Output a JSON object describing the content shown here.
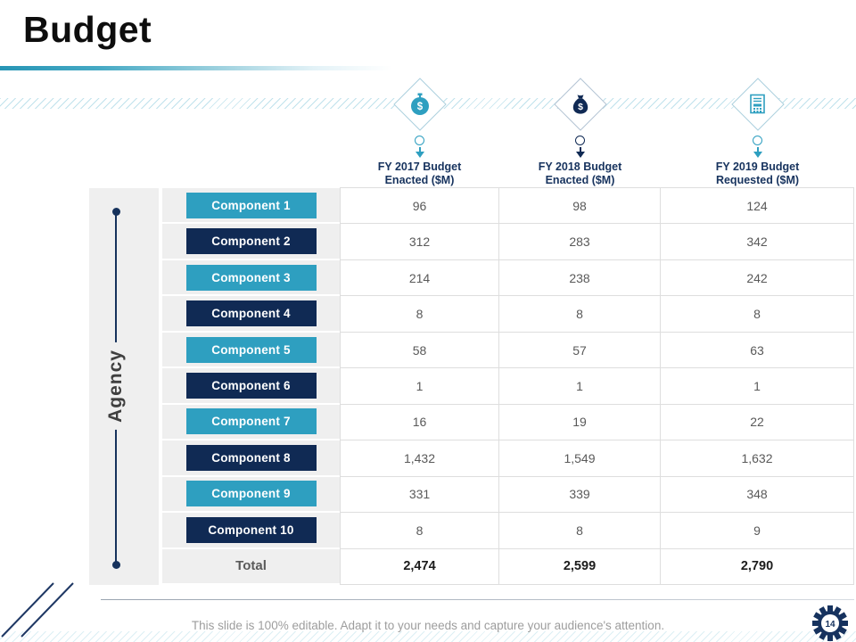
{
  "slide": {
    "title": "Budget",
    "footer_note": "This slide is 100% editable. Adapt it to your needs and capture your audience's attention.",
    "page_number": "14"
  },
  "colors": {
    "teal": "#2E9FC0",
    "navy": "#102A54"
  },
  "table": {
    "axis_label": "Agency",
    "columns": [
      {
        "title_line1": "FY 2017 Budget",
        "title_line2": "Enacted ($M)",
        "icon": "stopwatch-dollar-icon",
        "accent": "teal"
      },
      {
        "title_line1": "FY 2018 Budget",
        "title_line2": "Enacted ($M)",
        "icon": "money-bag-icon",
        "accent": "navy"
      },
      {
        "title_line1": "FY 2019 Budget",
        "title_line2": "Requested ($M)",
        "icon": "budget-report-calculator-icon",
        "accent": "teal"
      }
    ],
    "rows": [
      {
        "label": "Component 1",
        "variant": "teal",
        "values": [
          "96",
          "98",
          "124"
        ]
      },
      {
        "label": "Component 2",
        "variant": "navy",
        "values": [
          "312",
          "283",
          "342"
        ]
      },
      {
        "label": "Component 3",
        "variant": "teal",
        "values": [
          "214",
          "238",
          "242"
        ]
      },
      {
        "label": "Component 4",
        "variant": "navy",
        "values": [
          "8",
          "8",
          "8"
        ]
      },
      {
        "label": "Component 5",
        "variant": "teal",
        "values": [
          "58",
          "57",
          "63"
        ]
      },
      {
        "label": "Component 6",
        "variant": "navy",
        "values": [
          "1",
          "1",
          "1"
        ]
      },
      {
        "label": "Component 7",
        "variant": "teal",
        "values": [
          "16",
          "19",
          "22"
        ]
      },
      {
        "label": "Component 8",
        "variant": "navy",
        "values": [
          "1,432",
          "1,549",
          "1,632"
        ]
      },
      {
        "label": "Component 9",
        "variant": "teal",
        "values": [
          "331",
          "339",
          "348"
        ]
      },
      {
        "label": "Component 10",
        "variant": "navy",
        "values": [
          "8",
          "8",
          "9"
        ]
      },
      {
        "label": "Total",
        "variant": "total",
        "values": [
          "2,474",
          "2,599",
          "2,790"
        ]
      }
    ]
  }
}
